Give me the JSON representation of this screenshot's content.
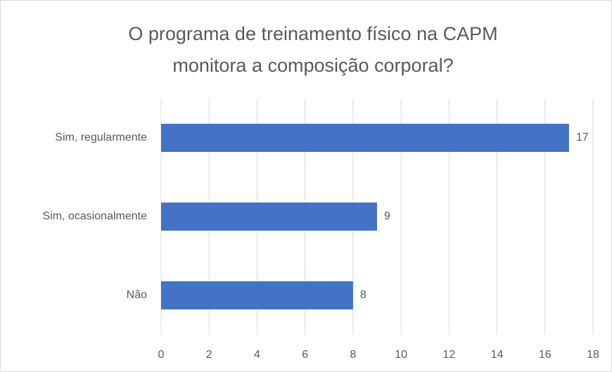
{
  "chart_data": {
    "type": "bar",
    "orientation": "horizontal",
    "title": [
      "O programa de treinamento físico na CAPM",
      "monitora a composição corporal?"
    ],
    "categories": [
      "Sim, regularmente",
      "Sim, ocasionalmente",
      "Não"
    ],
    "values": [
      17,
      9,
      8
    ],
    "color": "#4472c4",
    "xlim": [
      0,
      18
    ],
    "xticks": [
      0,
      2,
      4,
      6,
      8,
      10,
      12,
      14,
      16,
      18
    ],
    "grid": true
  }
}
